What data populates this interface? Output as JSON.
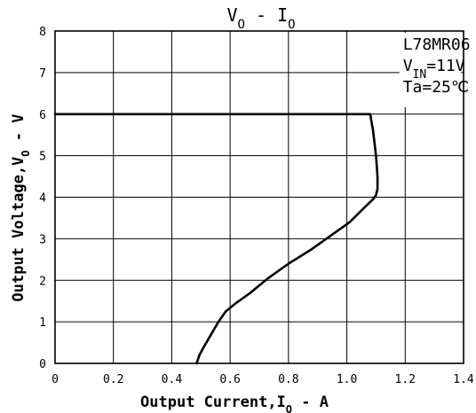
{
  "chart_data": {
    "type": "line",
    "title": {
      "parts": [
        {
          "text": "V",
          "sub": "O"
        },
        {
          "text": " - "
        },
        {
          "text": "I",
          "sub": "O"
        }
      ]
    },
    "xlabel": {
      "parts": [
        {
          "text": "Output Current,I",
          "sub": "O"
        },
        {
          "text": " - A"
        }
      ]
    },
    "ylabel": {
      "parts": [
        {
          "text": "Output Voltage,V",
          "sub": "O"
        },
        {
          "text": " - V"
        }
      ]
    },
    "xlim": [
      0,
      1.4
    ],
    "ylim": [
      0,
      8
    ],
    "x_ticks": [
      0,
      0.2,
      0.4,
      0.6,
      0.8,
      1.0,
      1.2,
      1.4
    ],
    "x_tick_labels": [
      "0",
      "0.2",
      "0.4",
      "0.6",
      "0.8",
      "1.0",
      "1.2",
      "1.4"
    ],
    "y_ticks": [
      0,
      1,
      2,
      3,
      4,
      5,
      6,
      7,
      8
    ],
    "y_tick_labels": [
      "0",
      "1",
      "2",
      "3",
      "4",
      "5",
      "6",
      "7",
      "8"
    ],
    "grid": true,
    "annotation": {
      "position": "top-right",
      "lines": [
        {
          "parts": [
            {
              "text": "L78MR06"
            }
          ]
        },
        {
          "parts": [
            {
              "text": "V",
              "sub": "IN"
            },
            {
              "text": "=11V"
            }
          ]
        },
        {
          "parts": [
            {
              "text": "Ta=25℃"
            }
          ]
        }
      ]
    },
    "series": [
      {
        "x": [
          0.0,
          1.08,
          1.09,
          1.1,
          1.105,
          1.105,
          1.1,
          1.09,
          1.06,
          1.01,
          0.95,
          0.88,
          0.8,
          0.73,
          0.67,
          0.62,
          0.585,
          0.56,
          0.535,
          0.51,
          0.495,
          0.485
        ],
        "y": [
          6.0,
          6.0,
          5.6,
          5.0,
          4.5,
          4.2,
          4.05,
          3.95,
          3.75,
          3.4,
          3.1,
          2.75,
          2.4,
          2.05,
          1.7,
          1.45,
          1.25,
          1.0,
          0.7,
          0.4,
          0.2,
          0.0
        ]
      }
    ]
  }
}
